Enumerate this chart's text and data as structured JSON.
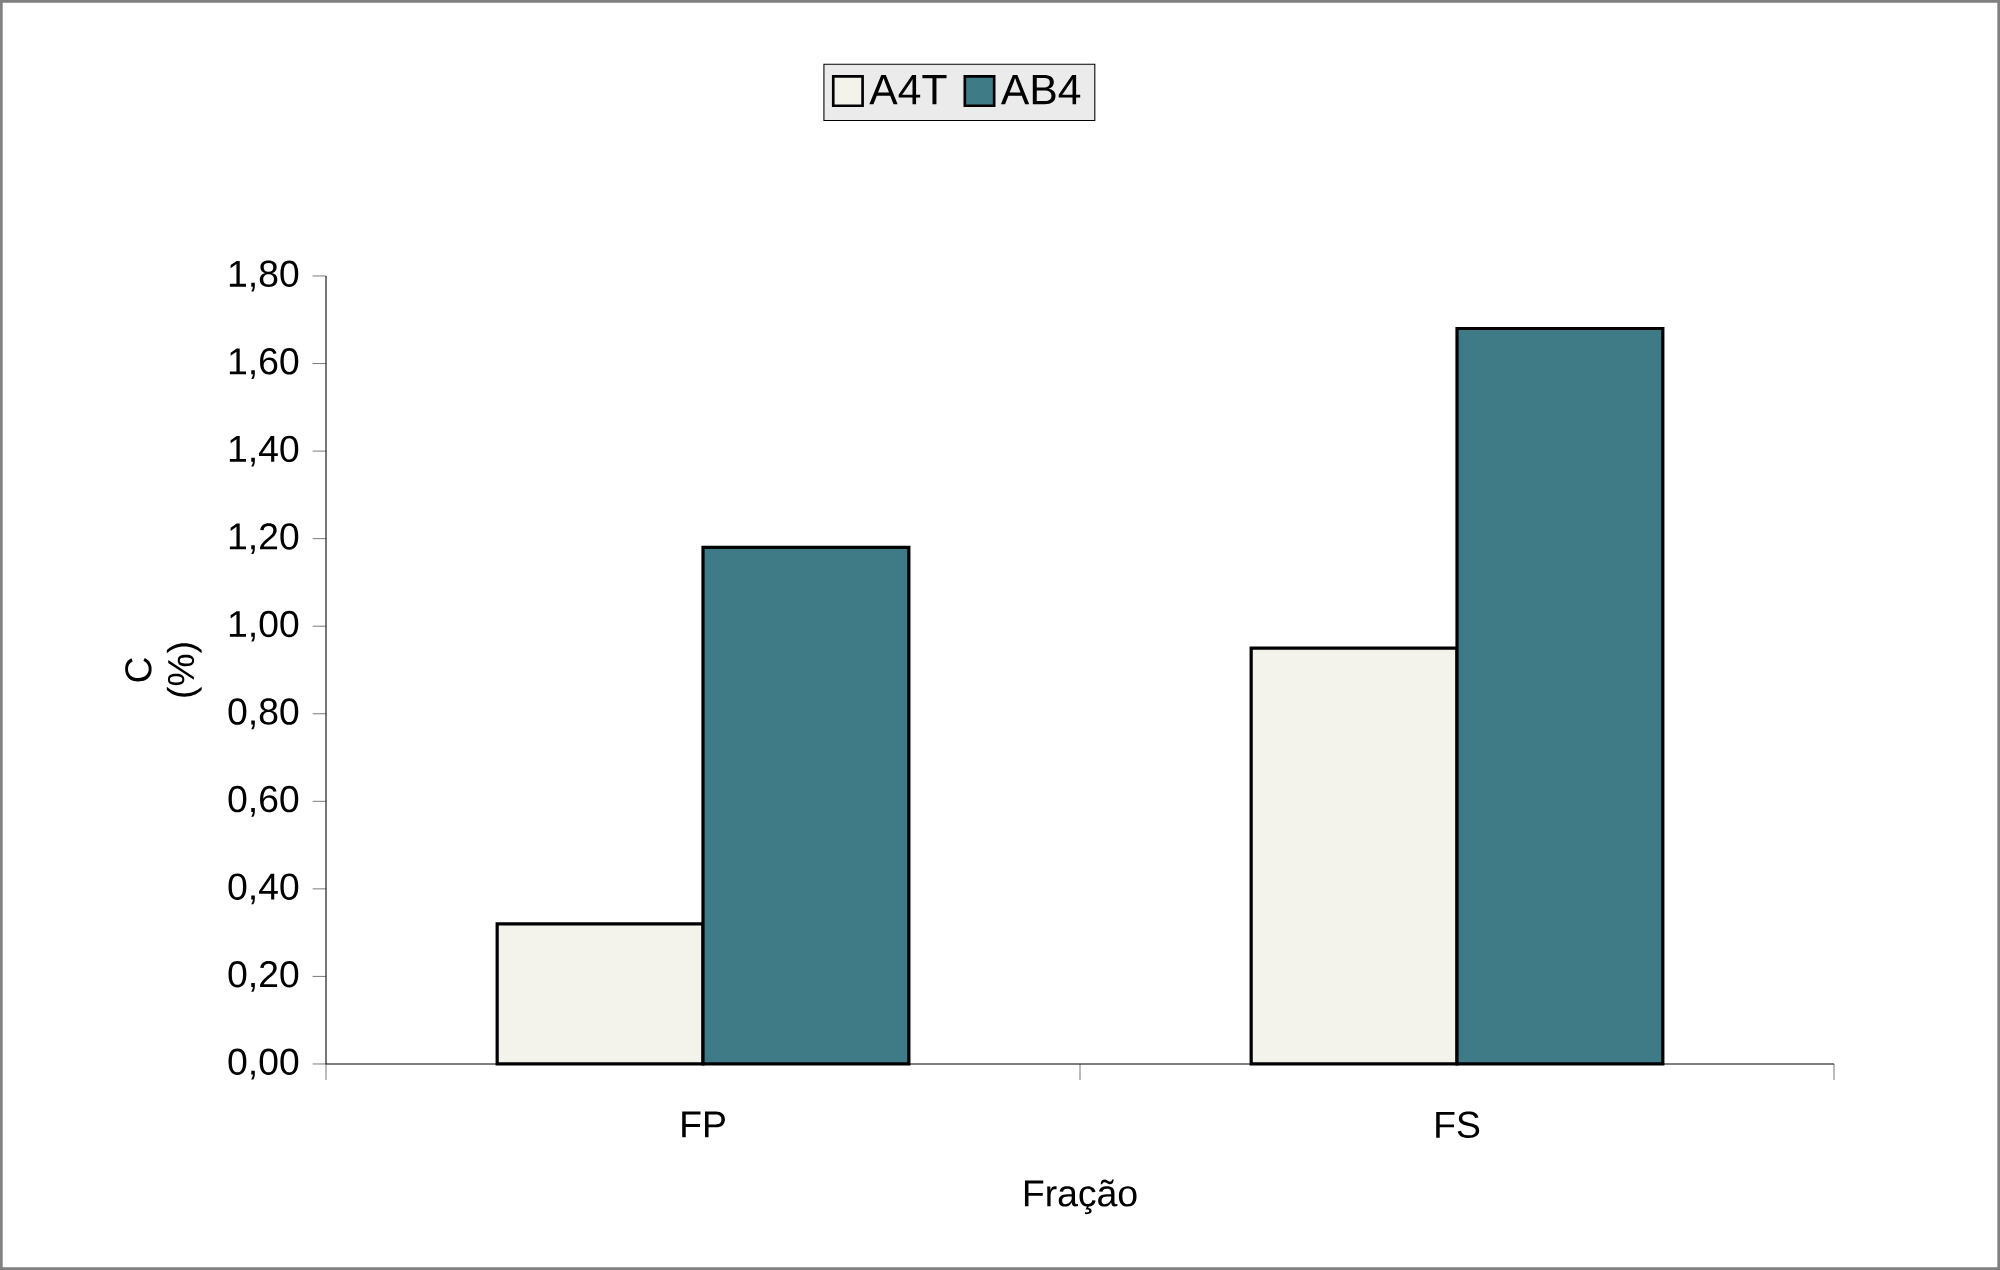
{
  "chart_data": {
    "type": "bar",
    "xlabel": "Fração",
    "ylabel": "C (%)",
    "categories": [
      "FP",
      "FS"
    ],
    "series": [
      {
        "name": "A4T",
        "color": "#f3f3ec",
        "values": [
          0.32,
          0.95
        ]
      },
      {
        "name": "AB4",
        "color": "#3f7b86",
        "values": [
          1.18,
          1.68
        ]
      }
    ],
    "ylim": [
      0,
      1.8
    ],
    "yticks": [
      {
        "value": 0,
        "label": "0,00"
      },
      {
        "value": 0.2,
        "label": "0,20"
      },
      {
        "value": 0.4,
        "label": "0,40"
      },
      {
        "value": 0.6,
        "label": "0,60"
      },
      {
        "value": 0.8,
        "label": "0,80"
      },
      {
        "value": 1.0,
        "label": "1,00"
      },
      {
        "value": 1.2,
        "label": "1,20"
      },
      {
        "value": 1.4,
        "label": "1,40"
      },
      {
        "value": 1.6,
        "label": "1,60"
      },
      {
        "value": 1.8,
        "label": "1,80"
      }
    ],
    "grid": false,
    "legend": "top"
  }
}
